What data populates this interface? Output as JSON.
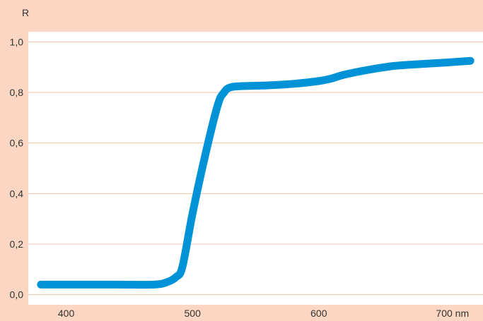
{
  "chart_data": {
    "type": "line",
    "ylabel": "R",
    "xlabel": "",
    "xlim": [
      370,
      730
    ],
    "ylim": [
      -0.04,
      1.04
    ],
    "x_ticks": [
      {
        "value": 400,
        "label": "400"
      },
      {
        "value": 500,
        "label": "500"
      },
      {
        "value": 600,
        "label": "600"
      },
      {
        "value": 700,
        "label": "700 nm"
      }
    ],
    "y_ticks": [
      {
        "value": 0.0,
        "label": "0,0"
      },
      {
        "value": 0.2,
        "label": "0,2"
      },
      {
        "value": 0.4,
        "label": "0,4"
      },
      {
        "value": 0.6,
        "label": "0,6"
      },
      {
        "value": 0.8,
        "label": "0,8"
      },
      {
        "value": 1.0,
        "label": "1,0"
      }
    ],
    "grid": "horizontal",
    "series": [
      {
        "x": [
          380,
          400,
          440,
          470,
          480,
          487,
          492,
          500,
          510,
          520,
          525,
          530,
          540,
          560,
          580,
          600,
          610,
          620,
          640,
          660,
          680,
          700,
          720
        ],
        "y": [
          0.04,
          0.04,
          0.04,
          0.04,
          0.05,
          0.07,
          0.11,
          0.32,
          0.55,
          0.75,
          0.8,
          0.82,
          0.825,
          0.828,
          0.834,
          0.845,
          0.855,
          0.87,
          0.89,
          0.905,
          0.912,
          0.918,
          0.925
        ]
      }
    ]
  },
  "colors": {
    "background": "#fbd7c3",
    "plot_area": "#ffffff",
    "grid": "#f6c4a8",
    "line": "#0092d6",
    "text": "#333333"
  }
}
